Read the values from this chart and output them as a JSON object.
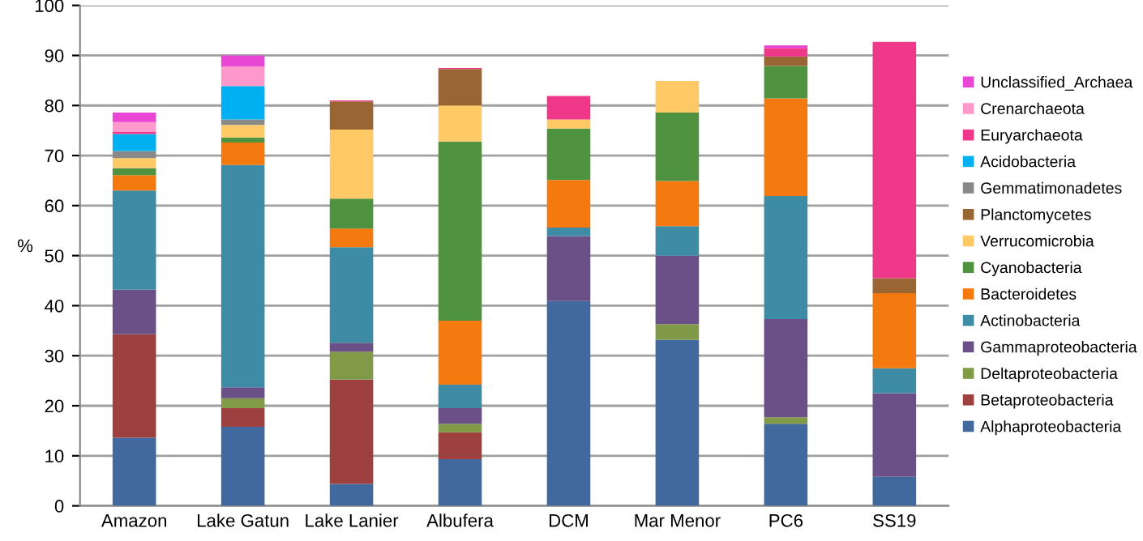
{
  "chart_data": {
    "type": "bar",
    "stacked": true,
    "ylabel": "%",
    "categories": [
      "Amazon",
      "Lake Gatun",
      "Lake Lanier",
      "Albufera",
      "DCM",
      "Mar Menor",
      "PC6",
      "SS19"
    ],
    "series": [
      {
        "name": "Alphaproteobacteria",
        "color": "#41699e",
        "values": [
          13.6,
          15.8,
          4.4,
          9.3,
          40.9,
          33.2,
          16.4,
          5.8
        ]
      },
      {
        "name": "Betaproteobacteria",
        "color": "#9e403f",
        "values": [
          20.7,
          3.7,
          20.8,
          5.4,
          0,
          0,
          0,
          0
        ]
      },
      {
        "name": "Deltaproteobacteria",
        "color": "#809a48",
        "values": [
          0,
          2.0,
          5.6,
          1.7,
          0,
          3.1,
          1.3,
          0
        ]
      },
      {
        "name": "Gammaproteobacteria",
        "color": "#6a5087",
        "values": [
          8.9,
          2.2,
          1.8,
          3.1,
          13.0,
          13.7,
          19.6,
          16.7
        ]
      },
      {
        "name": "Actinobacteria",
        "color": "#3d8ba4",
        "values": [
          19.8,
          44.4,
          19.1,
          4.7,
          1.7,
          5.9,
          24.6,
          5.0
        ]
      },
      {
        "name": "Bacteroidetes",
        "color": "#f4790f",
        "values": [
          3.1,
          4.5,
          3.7,
          12.8,
          9.5,
          9.0,
          19.5,
          15.0
        ]
      },
      {
        "name": "Cyanobacteria",
        "color": "#4f9340",
        "values": [
          1.4,
          1.0,
          6.0,
          35.8,
          10.3,
          13.7,
          6.5,
          0
        ]
      },
      {
        "name": "Verrucomicrobia",
        "color": "#ffca66",
        "values": [
          2.0,
          2.5,
          13.8,
          7.2,
          1.8,
          6.3,
          0,
          0
        ]
      },
      {
        "name": "Planctomycetes",
        "color": "#986533",
        "values": [
          0,
          0,
          5.6,
          7.3,
          0,
          0,
          1.9,
          3.0
        ]
      },
      {
        "name": "Gemmatimonadetes",
        "color": "#888888",
        "values": [
          1.4,
          1.1,
          0,
          0,
          0,
          0,
          0,
          0
        ]
      },
      {
        "name": "Acidobacteria",
        "color": "#00b0f0",
        "values": [
          3.4,
          6.7,
          0,
          0,
          0,
          0,
          0,
          0
        ]
      },
      {
        "name": "Euryarchaeota",
        "color": "#f0388a",
        "values": [
          0.4,
          0,
          0.2,
          0.2,
          4.7,
          0,
          1.7,
          47.2
        ]
      },
      {
        "name": "Crenarchaeota",
        "color": "#ff99cc",
        "values": [
          2.0,
          3.9,
          0,
          0,
          0,
          0,
          0,
          0
        ]
      },
      {
        "name": "Unclassified_Archaea",
        "color": "#e846d4",
        "values": [
          1.9,
          2.2,
          0,
          0,
          0,
          0,
          0.5,
          0
        ]
      }
    ],
    "ylim": [
      0,
      100
    ],
    "yticks": [
      0,
      10,
      20,
      30,
      40,
      50,
      60,
      70,
      80,
      90,
      100
    ],
    "grid": "y",
    "legend": "right"
  }
}
